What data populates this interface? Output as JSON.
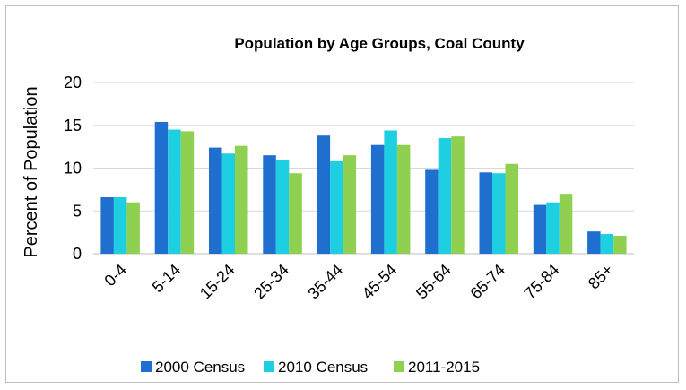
{
  "chart_data": {
    "type": "bar",
    "title": "Population by Age Groups, Coal County",
    "xlabel": "",
    "ylabel": "Percent of Population",
    "ylim": [
      0,
      20
    ],
    "yticks": [
      0,
      5,
      10,
      15,
      20
    ],
    "grid": true,
    "legend_position": "bottom",
    "categories": [
      "0-4",
      "5-14",
      "15-24",
      "25-34",
      "35-44",
      "45-54",
      "55-64",
      "65-74",
      "75-84",
      "85+"
    ],
    "series": [
      {
        "name": "2000 Census",
        "color": "#1f6fcf",
        "values": [
          6.6,
          15.4,
          12.4,
          11.5,
          13.8,
          12.7,
          9.8,
          9.5,
          5.7,
          2.6
        ]
      },
      {
        "name": "2010 Census",
        "color": "#1dcfe0",
        "values": [
          6.6,
          14.5,
          11.7,
          10.9,
          10.8,
          14.4,
          13.5,
          9.4,
          6.0,
          2.3
        ]
      },
      {
        "name": "2011-2015",
        "color": "#8fd050",
        "values": [
          6.0,
          14.3,
          12.6,
          9.4,
          11.5,
          12.7,
          13.7,
          10.5,
          7.0,
          2.1
        ]
      }
    ]
  }
}
